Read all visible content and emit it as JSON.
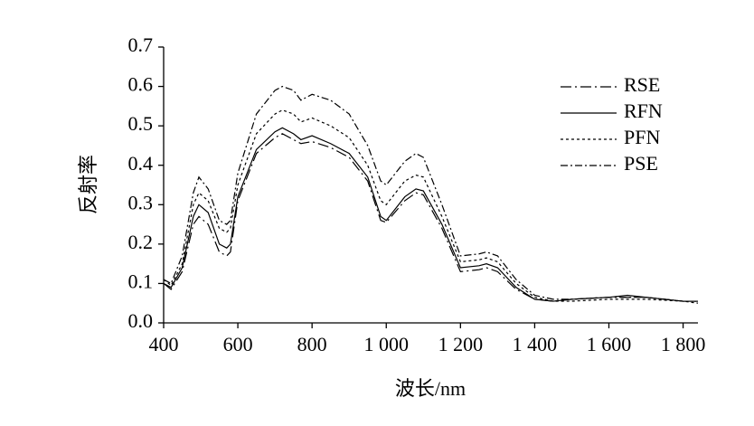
{
  "chart_data": {
    "type": "line",
    "x_label": "波长/nm",
    "y_label": "反射率",
    "x": [
      400,
      420,
      450,
      480,
      495,
      520,
      550,
      570,
      580,
      600,
      650,
      700,
      720,
      750,
      770,
      800,
      850,
      900,
      950,
      985,
      1000,
      1050,
      1080,
      1100,
      1150,
      1200,
      1250,
      1270,
      1300,
      1350,
      1400,
      1450,
      1500,
      1600,
      1650,
      1700,
      1800,
      1840
    ],
    "series": [
      {
        "name": "RSE",
        "color": "#000000",
        "dash": "12,4,2,4",
        "values": [
          0.1,
          0.085,
          0.13,
          0.25,
          0.27,
          0.25,
          0.18,
          0.17,
          0.18,
          0.31,
          0.43,
          0.47,
          0.48,
          0.465,
          0.455,
          0.46,
          0.445,
          0.42,
          0.36,
          0.26,
          0.255,
          0.31,
          0.33,
          0.325,
          0.24,
          0.13,
          0.135,
          0.14,
          0.13,
          0.085,
          0.06,
          0.055,
          0.06,
          0.065,
          0.065,
          0.065,
          0.055,
          0.055
        ]
      },
      {
        "name": "RFN",
        "color": "#000000",
        "dash": "none",
        "values": [
          0.1,
          0.09,
          0.14,
          0.27,
          0.3,
          0.28,
          0.2,
          0.19,
          0.2,
          0.32,
          0.44,
          0.485,
          0.495,
          0.48,
          0.465,
          0.475,
          0.455,
          0.43,
          0.37,
          0.27,
          0.26,
          0.32,
          0.34,
          0.335,
          0.25,
          0.14,
          0.145,
          0.15,
          0.14,
          0.09,
          0.06,
          0.055,
          0.06,
          0.065,
          0.07,
          0.065,
          0.055,
          0.055
        ]
      },
      {
        "name": "PFN",
        "color": "#000000",
        "dash": "3,3",
        "values": [
          0.11,
          0.095,
          0.15,
          0.3,
          0.33,
          0.31,
          0.24,
          0.23,
          0.24,
          0.35,
          0.48,
          0.53,
          0.54,
          0.53,
          0.51,
          0.52,
          0.5,
          0.47,
          0.4,
          0.31,
          0.3,
          0.36,
          0.375,
          0.37,
          0.27,
          0.155,
          0.16,
          0.165,
          0.155,
          0.1,
          0.065,
          0.055,
          0.055,
          0.06,
          0.06,
          0.06,
          0.055,
          0.05
        ]
      },
      {
        "name": "PSE",
        "color": "#000000",
        "dash": "8,3,2,3",
        "values": [
          0.11,
          0.1,
          0.17,
          0.33,
          0.37,
          0.34,
          0.26,
          0.25,
          0.26,
          0.38,
          0.53,
          0.59,
          0.6,
          0.59,
          0.565,
          0.58,
          0.565,
          0.53,
          0.45,
          0.36,
          0.35,
          0.41,
          0.43,
          0.42,
          0.3,
          0.17,
          0.175,
          0.18,
          0.17,
          0.11,
          0.07,
          0.06,
          0.06,
          0.065,
          0.065,
          0.065,
          0.055,
          0.055
        ]
      }
    ],
    "xlim": [
      400,
      1840
    ],
    "xticks": [
      400,
      600,
      800,
      {
        "value": 1000,
        "label": "1 000"
      },
      {
        "value": 1200,
        "label": "1 200"
      },
      {
        "value": 1400,
        "label": "1 400"
      },
      {
        "value": 1600,
        "label": "1 600"
      },
      {
        "value": 1800,
        "label": "1 800"
      }
    ],
    "ylim": [
      0,
      0.7
    ],
    "yticks": [
      {
        "value": 0,
        "label": "0.0"
      },
      0.1,
      0.2,
      0.3,
      0.4,
      0.5,
      0.6,
      0.7
    ],
    "grid": false,
    "legend": "upper right"
  }
}
